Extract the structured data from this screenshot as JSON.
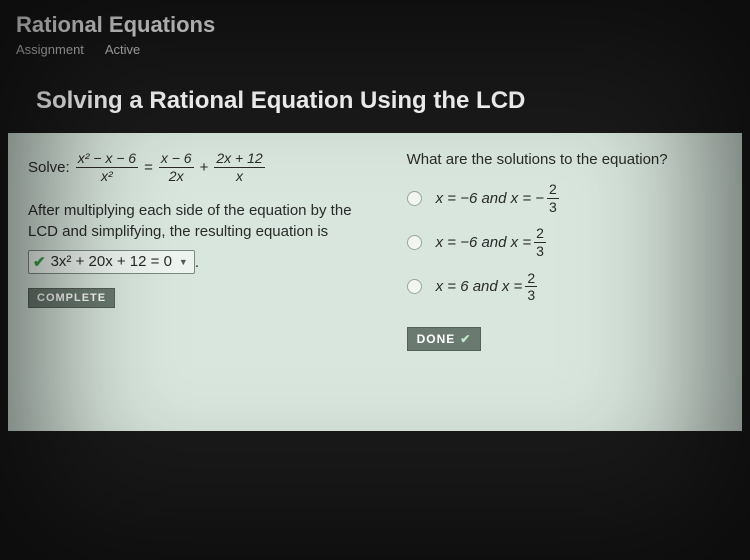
{
  "header": {
    "title": "Rational Equations",
    "sub1": "Assignment",
    "sub2": "Active"
  },
  "lesson_title": "Solving a Rational Equation Using the LCD",
  "left": {
    "solve_label": "Solve:",
    "eq": {
      "f1_num": "x² − x − 6",
      "f1_den": "x²",
      "eqsign": "=",
      "f2_num": "x − 6",
      "f2_den": "2x",
      "plus": "+",
      "f3_num": "2x + 12",
      "f3_den": "x"
    },
    "explain": "After multiplying each side of the equation by the LCD and simplifying, the resulting equation is",
    "answer": "3x² + 20x + 12 = 0",
    "complete": "COMPLETE"
  },
  "right": {
    "question": "What are the solutions to the equation?",
    "options": [
      {
        "pre": "x = −6 and x = −",
        "num": "2",
        "den": "3"
      },
      {
        "pre": "x = −6 and x = ",
        "num": "2",
        "den": "3"
      },
      {
        "pre": "x = 6 and x = ",
        "num": "2",
        "den": "3"
      }
    ],
    "done": "DONE"
  },
  "colors": {
    "page_bg": "#1a1a1a",
    "panel_bg": "#d8e6dd",
    "text_dark": "#2a2a2a",
    "badge_bg": "#6a7a70",
    "check_green": "#3aa04a"
  }
}
